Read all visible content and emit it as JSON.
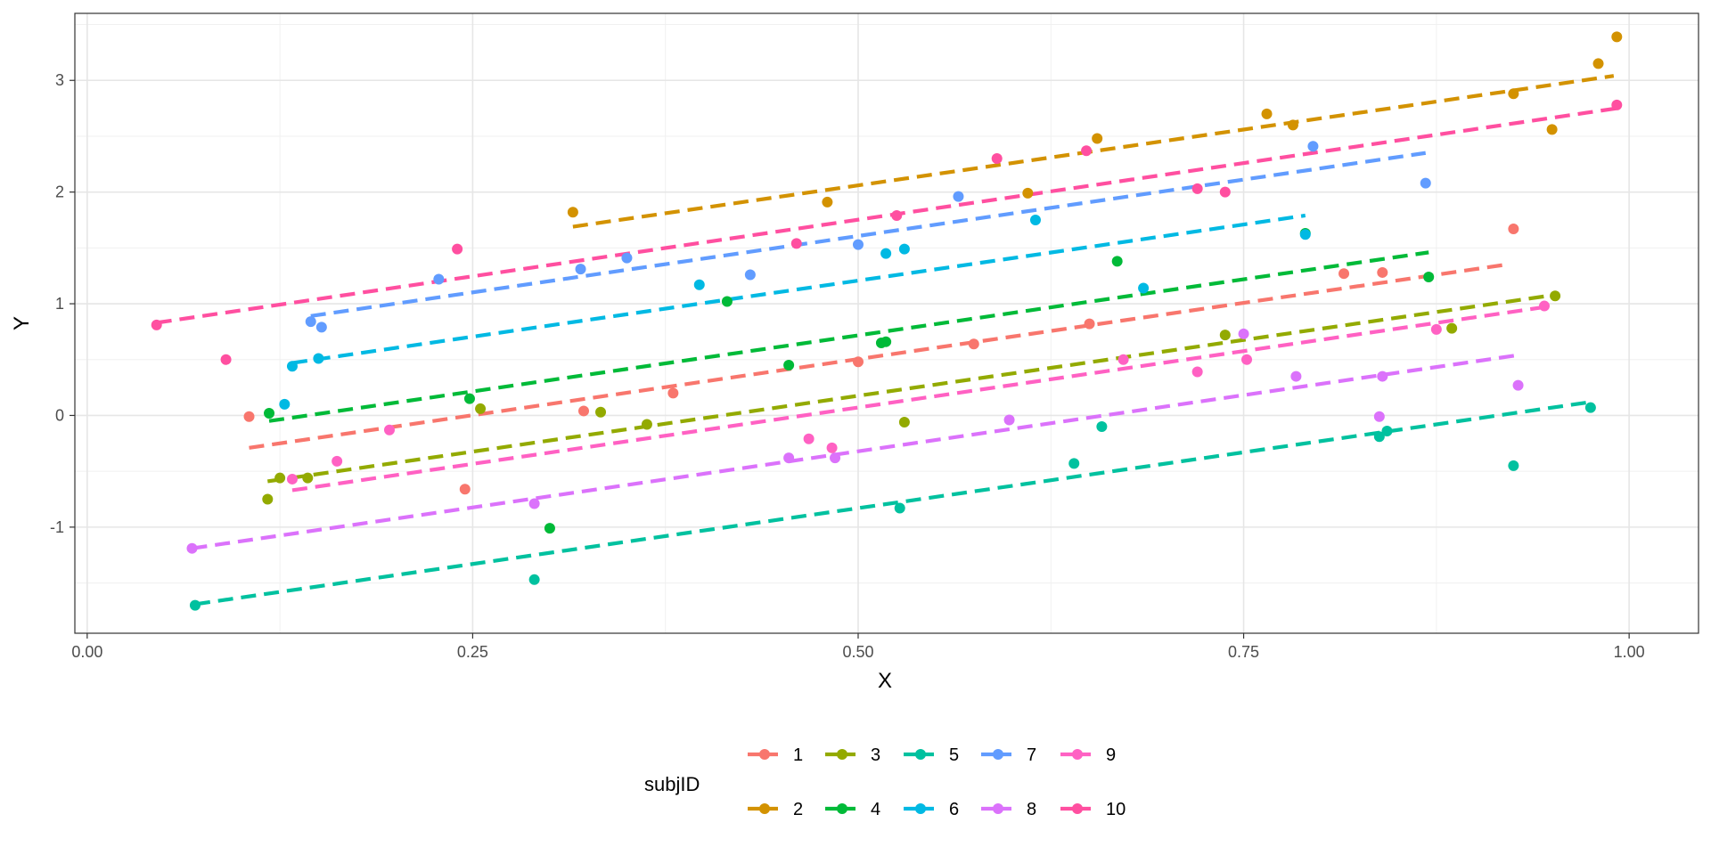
{
  "chart_data": {
    "type": "scatter",
    "xlabel": "X",
    "ylabel": "Y",
    "xlim": [
      0,
      1
    ],
    "ylim": [
      -1.95,
      3.6
    ],
    "x_ticks": [
      0,
      0.25,
      0.5,
      0.75,
      1
    ],
    "x_tick_labels": [
      "0.00",
      "0.25",
      "0.50",
      "0.75",
      "1.00"
    ],
    "y_ticks": [
      -1,
      0,
      1,
      2,
      3
    ],
    "y_tick_labels": [
      "-1",
      "0",
      "1",
      "2",
      "3"
    ],
    "grid": true,
    "legend": {
      "title": "subjID",
      "position": "bottom"
    },
    "series": [
      {
        "name": "1",
        "color": "#F8766D",
        "points": [
          [
            0.105,
            -0.01
          ],
          [
            0.245,
            -0.66
          ],
          [
            0.322,
            0.04
          ],
          [
            0.38,
            0.2
          ],
          [
            0.5,
            0.48
          ],
          [
            0.575,
            0.64
          ],
          [
            0.65,
            0.82
          ],
          [
            0.815,
            1.27
          ],
          [
            0.84,
            1.28
          ],
          [
            0.925,
            1.67
          ]
        ],
        "fit": [
          [
            0.105,
            -0.29
          ],
          [
            0.92,
            1.35
          ]
        ]
      },
      {
        "name": "2",
        "color": "#D39200",
        "points": [
          [
            0.315,
            1.82
          ],
          [
            0.48,
            1.91
          ],
          [
            0.61,
            1.99
          ],
          [
            0.655,
            2.48
          ],
          [
            0.765,
            2.7
          ],
          [
            0.782,
            2.6
          ],
          [
            0.925,
            2.88
          ],
          [
            0.95,
            2.56
          ],
          [
            0.98,
            3.15
          ],
          [
            0.992,
            3.39
          ]
        ],
        "fit": [
          [
            0.315,
            1.69
          ],
          [
            0.99,
            3.04
          ]
        ]
      },
      {
        "name": "3",
        "color": "#93AA00",
        "points": [
          [
            0.117,
            -0.75
          ],
          [
            0.125,
            -0.56
          ],
          [
            0.143,
            -0.56
          ],
          [
            0.255,
            0.06
          ],
          [
            0.333,
            0.03
          ],
          [
            0.363,
            -0.08
          ],
          [
            0.53,
            -0.06
          ],
          [
            0.738,
            0.72
          ],
          [
            0.885,
            0.78
          ],
          [
            0.952,
            1.07
          ]
        ],
        "fit": [
          [
            0.117,
            -0.59
          ],
          [
            0.952,
            1.08
          ]
        ]
      },
      {
        "name": "4",
        "color": "#00BA38",
        "points": [
          [
            0.118,
            0.02
          ],
          [
            0.248,
            0.15
          ],
          [
            0.3,
            -1.01
          ],
          [
            0.415,
            1.02
          ],
          [
            0.455,
            0.45
          ],
          [
            0.515,
            0.65
          ],
          [
            0.518,
            0.66
          ],
          [
            0.668,
            1.38
          ],
          [
            0.79,
            1.63
          ],
          [
            0.87,
            1.24
          ]
        ],
        "fit": [
          [
            0.118,
            -0.05
          ],
          [
            0.87,
            1.46
          ]
        ]
      },
      {
        "name": "5",
        "color": "#00C19F",
        "points": [
          [
            0.07,
            -1.7
          ],
          [
            0.29,
            -1.47
          ],
          [
            0.527,
            -0.83
          ],
          [
            0.64,
            -0.43
          ],
          [
            0.658,
            -0.1
          ],
          [
            0.838,
            -0.19
          ],
          [
            0.843,
            -0.14
          ],
          [
            0.925,
            -0.45
          ],
          [
            0.975,
            0.07
          ]
        ],
        "fit": [
          [
            0.07,
            -1.69
          ],
          [
            0.975,
            0.12
          ]
        ]
      },
      {
        "name": "6",
        "color": "#00B9E3",
        "points": [
          [
            0.128,
            0.1
          ],
          [
            0.133,
            0.44
          ],
          [
            0.15,
            0.51
          ],
          [
            0.397,
            1.17
          ],
          [
            0.518,
            1.45
          ],
          [
            0.53,
            1.49
          ],
          [
            0.615,
            1.75
          ],
          [
            0.685,
            1.14
          ],
          [
            0.79,
            1.62
          ]
        ],
        "fit": [
          [
            0.133,
            0.47
          ],
          [
            0.79,
            1.79
          ]
        ]
      },
      {
        "name": "7",
        "color": "#619CFF",
        "points": [
          [
            0.145,
            0.84
          ],
          [
            0.152,
            0.79
          ],
          [
            0.228,
            1.22
          ],
          [
            0.32,
            1.31
          ],
          [
            0.35,
            1.41
          ],
          [
            0.43,
            1.26
          ],
          [
            0.5,
            1.53
          ],
          [
            0.565,
            1.96
          ],
          [
            0.795,
            2.41
          ],
          [
            0.868,
            2.08
          ]
        ],
        "fit": [
          [
            0.145,
            0.89
          ],
          [
            0.868,
            2.35
          ]
        ]
      },
      {
        "name": "8",
        "color": "#DB72FB",
        "points": [
          [
            0.068,
            -1.19
          ],
          [
            0.29,
            -0.79
          ],
          [
            0.455,
            -0.38
          ],
          [
            0.485,
            -0.38
          ],
          [
            0.598,
            -0.04
          ],
          [
            0.75,
            0.73
          ],
          [
            0.784,
            0.35
          ],
          [
            0.84,
            0.35
          ],
          [
            0.838,
            -0.01
          ],
          [
            0.928,
            0.27
          ]
        ],
        "fit": [
          [
            0.068,
            -1.19
          ],
          [
            0.928,
            0.54
          ]
        ]
      },
      {
        "name": "9",
        "color": "#FF61C3",
        "points": [
          [
            0.133,
            -0.57
          ],
          [
            0.162,
            -0.41
          ],
          [
            0.196,
            -0.13
          ],
          [
            0.468,
            -0.21
          ],
          [
            0.483,
            -0.29
          ],
          [
            0.672,
            0.5
          ],
          [
            0.72,
            0.39
          ],
          [
            0.752,
            0.5
          ],
          [
            0.875,
            0.77
          ],
          [
            0.945,
            0.98
          ]
        ],
        "fit": [
          [
            0.133,
            -0.67
          ],
          [
            0.945,
            0.97
          ]
        ]
      },
      {
        "name": "10",
        "color": "#FF4FA0",
        "points": [
          [
            0.045,
            0.81
          ],
          [
            0.09,
            0.5
          ],
          [
            0.24,
            1.49
          ],
          [
            0.46,
            1.54
          ],
          [
            0.525,
            1.79
          ],
          [
            0.59,
            2.3
          ],
          [
            0.648,
            2.37
          ],
          [
            0.72,
            2.03
          ],
          [
            0.738,
            2.0
          ],
          [
            0.992,
            2.78
          ]
        ],
        "fit": [
          [
            0.045,
            0.83
          ],
          [
            0.992,
            2.75
          ]
        ]
      }
    ],
    "legend_rows": [
      [
        "1",
        "3",
        "5",
        "7",
        "9"
      ],
      [
        "2",
        "4",
        "6",
        "8",
        "10"
      ]
    ]
  }
}
